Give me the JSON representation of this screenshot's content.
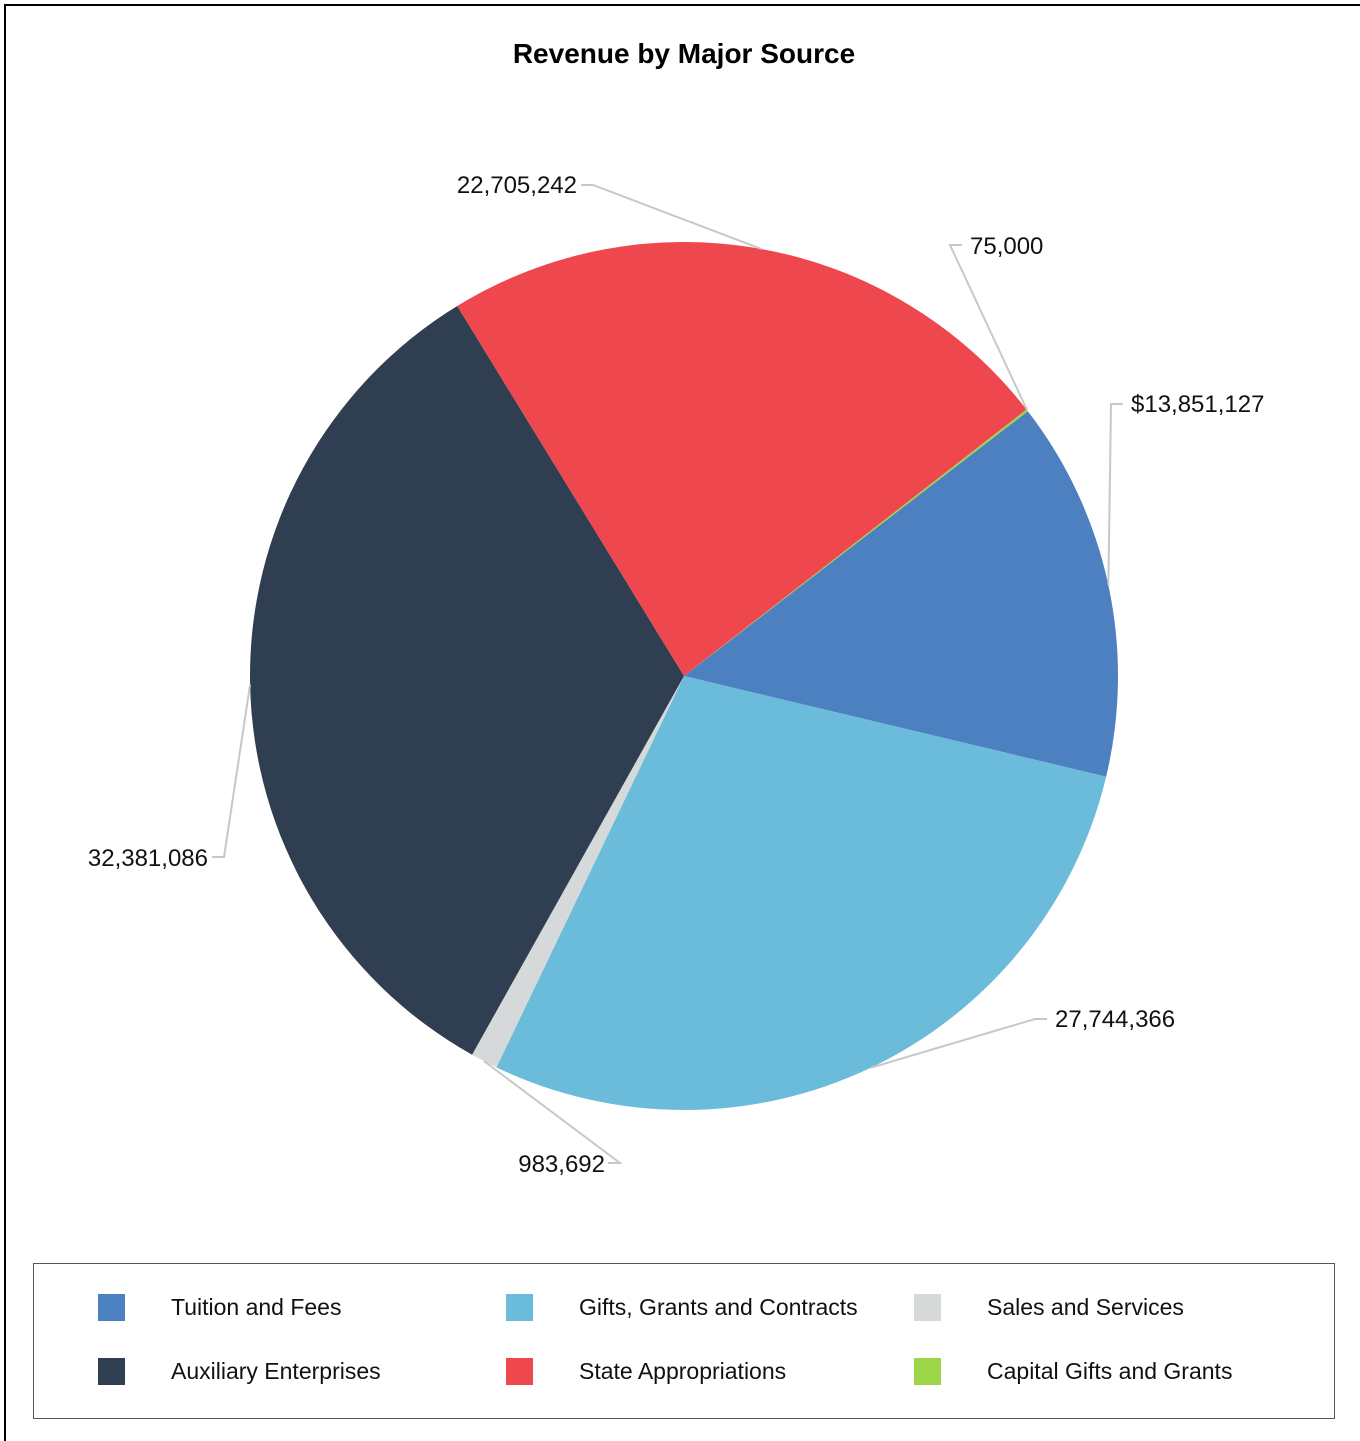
{
  "chart_data": {
    "type": "pie",
    "title": "Revenue by Major Source",
    "slices": [
      {
        "name": "Tuition and Fees",
        "value": 13851127,
        "label": "$13,851,127",
        "color": "#4d80c1"
      },
      {
        "name": "Gifts, Grants and Contracts",
        "value": 27744366,
        "label": "27,744,366",
        "color": "#6bbbda"
      },
      {
        "name": "Sales and Services",
        "value": 983692,
        "label": "983,692",
        "color": "#d6d9da"
      },
      {
        "name": "Auxiliary Enterprises",
        "value": 32381086,
        "label": "32,381,086",
        "color": "#2f3e51"
      },
      {
        "name": "State Appropriations",
        "value": 22705242,
        "label": "22,705,242",
        "color": "#ef474e"
      },
      {
        "name": "Capital Gifts and Grants",
        "value": 75000,
        "label": "75,000",
        "color": "#9bd548"
      }
    ],
    "legend_position": "bottom",
    "legend": [
      {
        "name": "Tuition and Fees",
        "color": "#4d80c1"
      },
      {
        "name": "Gifts, Grants and Contracts",
        "color": "#6bbbda"
      },
      {
        "name": "Sales and Services",
        "color": "#d6d9da"
      },
      {
        "name": "Auxiliary Enterprises",
        "color": "#2f3e51"
      },
      {
        "name": "State Appropriations",
        "color": "#ef474e"
      },
      {
        "name": "Capital Gifts and Grants",
        "color": "#9bd548"
      }
    ]
  }
}
